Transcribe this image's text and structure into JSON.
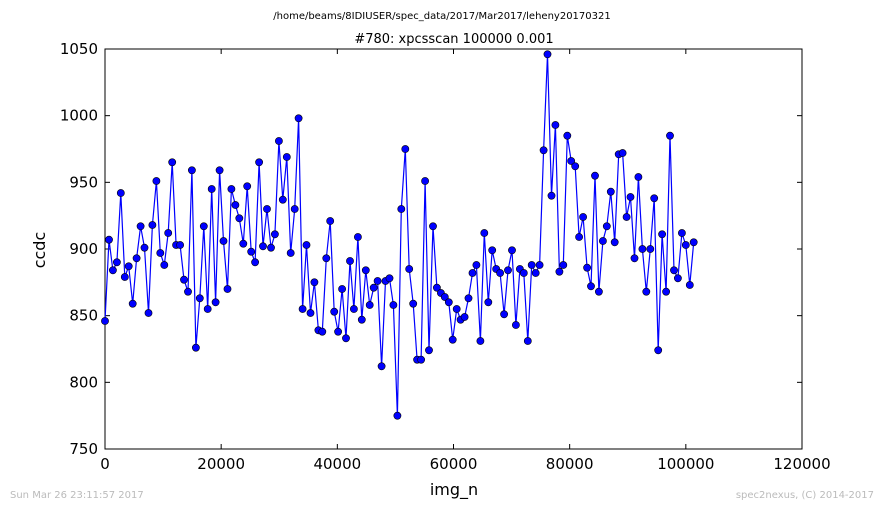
{
  "header": {
    "path": "/home/beams/8IDIUSER/spec_data/2017/Mar2017/leheny20170321"
  },
  "footer": {
    "timestamp": "Sun Mar 26 23:11:57 2017",
    "credit": "spec2nexus, (C) 2014-2017"
  },
  "colors": {
    "series": "#0000ff",
    "marker_edge": "#000000"
  },
  "chart_data": {
    "type": "line",
    "title": "#780: xpcsscan 100000 0.001",
    "xlabel": "img_n",
    "ylabel": "ccdc",
    "xlim": [
      0,
      120000
    ],
    "ylim": [
      750,
      1050
    ],
    "xticks": [
      0,
      20000,
      40000,
      60000,
      80000,
      100000,
      120000
    ],
    "yticks": [
      750,
      800,
      850,
      900,
      950,
      1000,
      1050
    ],
    "grid": false,
    "markers": true,
    "series": [
      {
        "x_start": 0,
        "x_step": 680.272,
        "values": [
          846,
          907,
          884,
          890,
          942,
          879,
          887,
          859,
          893,
          917,
          901,
          852,
          918,
          951,
          897,
          888,
          912,
          965,
          903,
          903,
          877,
          868,
          959,
          826,
          863,
          917,
          855,
          945,
          860,
          959,
          906,
          870,
          945,
          933,
          923,
          904,
          947,
          898,
          890,
          965,
          902,
          930,
          901,
          911,
          981,
          937,
          969,
          897,
          930,
          998,
          855,
          903,
          852,
          875,
          839,
          838,
          893,
          921,
          853,
          838,
          870,
          833,
          891,
          855,
          909,
          847,
          884,
          858,
          871,
          876,
          812,
          876,
          878,
          858,
          775,
          930,
          975,
          885,
          859,
          817,
          817,
          951,
          824,
          917,
          871,
          867,
          864,
          860,
          832,
          855,
          847,
          849,
          863,
          882,
          888,
          831,
          912,
          860,
          899,
          885,
          882,
          851,
          884,
          899,
          843,
          885,
          882,
          831,
          888,
          882,
          888,
          974,
          1046,
          940,
          993,
          883,
          888,
          985,
          966,
          962,
          909,
          924,
          886,
          872,
          955,
          868,
          906,
          917,
          943,
          905,
          971,
          972,
          924,
          939,
          893,
          954,
          900,
          868,
          900,
          938,
          824,
          911,
          868,
          985,
          884,
          878,
          912,
          903,
          873,
          905
        ]
      }
    ]
  }
}
